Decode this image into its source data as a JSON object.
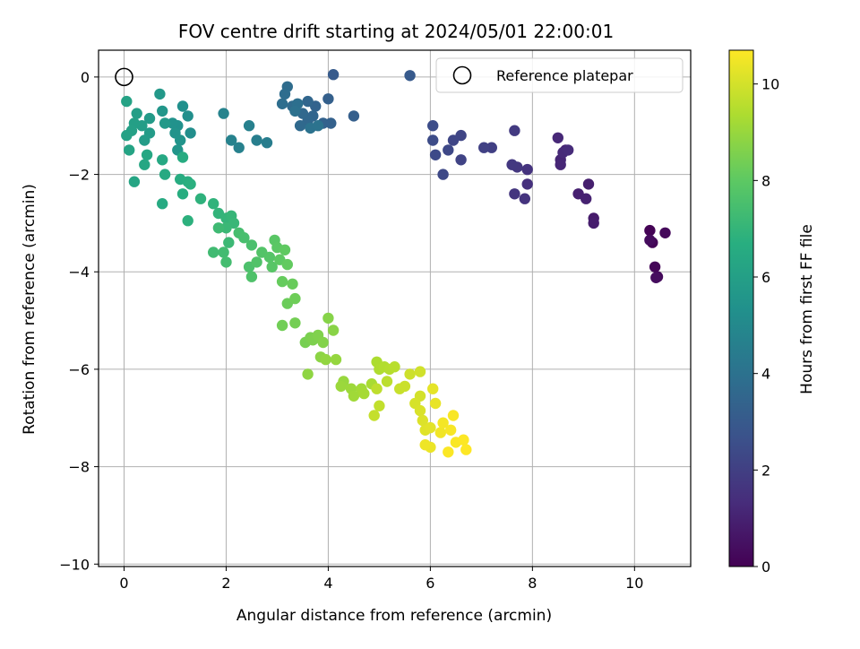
{
  "chart_data": {
    "type": "scatter",
    "title": "FOV centre drift starting at 2024/05/01 22:00:01",
    "xlabel": "Angular distance from reference (arcmin)",
    "ylabel": "Rotation from reference (arcmin)",
    "xlim": [
      -0.5,
      11.1
    ],
    "ylim": [
      -10.05,
      0.55
    ],
    "xticks": [
      0,
      2,
      4,
      6,
      8,
      10
    ],
    "yticks": [
      0,
      -2,
      -4,
      -6,
      -8,
      -10
    ],
    "xtick_labels": [
      "0",
      "2",
      "4",
      "6",
      "8",
      "10"
    ],
    "ytick_labels": [
      "0",
      "−2",
      "−4",
      "−6",
      "−8",
      "−10"
    ],
    "grid": true,
    "legend": {
      "placement": "top-right",
      "entries": [
        "Reference platepar"
      ]
    },
    "colormap": "viridis",
    "colorbar": {
      "label": "Hours from first FF file",
      "range": [
        0,
        10.7
      ],
      "ticks": [
        0,
        2,
        4,
        6,
        8,
        10
      ],
      "tick_labels": [
        "0",
        "2",
        "4",
        "6",
        "8",
        "10"
      ]
    },
    "reference_point": {
      "x": 0,
      "y": 0
    },
    "points": [
      [
        10.3,
        -3.15,
        0.05
      ],
      [
        10.35,
        -3.4,
        0.1
      ],
      [
        10.4,
        -3.9,
        0.15
      ],
      [
        10.45,
        -4.1,
        0.2
      ],
      [
        10.6,
        -3.2,
        0.25
      ],
      [
        10.3,
        -3.35,
        0.3
      ],
      [
        10.42,
        -4.12,
        0.35
      ],
      [
        9.2,
        -2.9,
        0.8
      ],
      [
        9.2,
        -3.0,
        0.85
      ],
      [
        9.1,
        -2.2,
        0.9
      ],
      [
        8.9,
        -2.4,
        0.95
      ],
      [
        9.05,
        -2.5,
        1.0
      ],
      [
        8.65,
        -1.5,
        1.05
      ],
      [
        8.55,
        -1.7,
        1.1
      ],
      [
        8.55,
        -1.8,
        1.15
      ],
      [
        8.5,
        -1.25,
        1.2
      ],
      [
        8.6,
        -1.55,
        1.25
      ],
      [
        8.7,
        -1.5,
        1.3
      ],
      [
        7.9,
        -2.2,
        1.5
      ],
      [
        7.9,
        -1.9,
        1.55
      ],
      [
        7.85,
        -2.5,
        1.6
      ],
      [
        7.65,
        -2.4,
        1.65
      ],
      [
        7.7,
        -1.85,
        1.7
      ],
      [
        7.6,
        -1.8,
        1.75
      ],
      [
        7.65,
        -1.1,
        1.8
      ],
      [
        7.2,
        -1.45,
        2.0
      ],
      [
        7.05,
        -1.45,
        2.05
      ],
      [
        6.6,
        -1.7,
        2.15
      ],
      [
        6.6,
        -1.2,
        2.2
      ],
      [
        6.45,
        -1.3,
        2.25
      ],
      [
        6.35,
        -1.5,
        2.3
      ],
      [
        6.25,
        -2.0,
        2.35
      ],
      [
        6.1,
        -1.6,
        2.4
      ],
      [
        6.05,
        -1.3,
        2.45
      ],
      [
        6.05,
        -1.0,
        2.5
      ],
      [
        5.6,
        0.03,
        3.0
      ],
      [
        4.1,
        0.05,
        3.05
      ],
      [
        4.5,
        -0.8,
        3.2
      ],
      [
        4.0,
        -0.45,
        3.25
      ],
      [
        4.05,
        -0.95,
        3.3
      ],
      [
        3.9,
        -0.95,
        3.35
      ],
      [
        3.75,
        -0.6,
        3.4
      ],
      [
        3.7,
        -0.8,
        3.45
      ],
      [
        3.6,
        -0.5,
        3.5
      ],
      [
        3.6,
        -0.9,
        3.55
      ],
      [
        3.5,
        -0.75,
        3.6
      ],
      [
        3.45,
        -1.0,
        3.65
      ],
      [
        3.3,
        -0.6,
        3.7
      ],
      [
        3.2,
        -0.2,
        3.75
      ],
      [
        3.15,
        -0.35,
        3.8
      ],
      [
        3.1,
        -0.55,
        3.85
      ],
      [
        3.4,
        -0.55,
        3.9
      ],
      [
        3.35,
        -0.7,
        3.95
      ],
      [
        3.65,
        -1.05,
        4.0
      ],
      [
        3.8,
        -1.0,
        4.05
      ],
      [
        2.8,
        -1.35,
        4.5
      ],
      [
        2.6,
        -1.3,
        4.55
      ],
      [
        2.45,
        -1.0,
        4.6
      ],
      [
        2.25,
        -1.45,
        4.65
      ],
      [
        2.1,
        -1.3,
        4.7
      ],
      [
        1.95,
        -0.75,
        4.75
      ],
      [
        1.3,
        -1.15,
        5.2
      ],
      [
        1.25,
        -0.8,
        5.25
      ],
      [
        1.15,
        -0.6,
        5.3
      ],
      [
        1.05,
        -1.0,
        5.35
      ],
      [
        0.95,
        -0.95,
        5.4
      ],
      [
        1.0,
        -1.15,
        5.45
      ],
      [
        1.1,
        -1.3,
        5.5
      ],
      [
        1.05,
        -1.5,
        5.55
      ],
      [
        0.75,
        -0.7,
        5.6
      ],
      [
        0.7,
        -0.35,
        5.65
      ],
      [
        0.8,
        -0.95,
        5.7
      ],
      [
        0.5,
        -0.85,
        5.75
      ],
      [
        0.5,
        -1.15,
        5.8
      ],
      [
        0.4,
        -1.3,
        5.85
      ],
      [
        0.35,
        -1.0,
        5.9
      ],
      [
        0.25,
        -0.75,
        5.95
      ],
      [
        0.2,
        -0.95,
        6.0
      ],
      [
        0.15,
        -1.1,
        6.05
      ],
      [
        0.05,
        -1.2,
        6.1
      ],
      [
        0.05,
        -0.5,
        6.15
      ],
      [
        0.1,
        -1.5,
        6.2
      ],
      [
        0.2,
        -2.15,
        6.25
      ],
      [
        0.4,
        -1.8,
        6.3
      ],
      [
        0.45,
        -1.6,
        6.35
      ],
      [
        0.75,
        -1.7,
        6.4
      ],
      [
        0.8,
        -2.0,
        6.45
      ],
      [
        0.75,
        -2.6,
        6.5
      ],
      [
        1.15,
        -1.65,
        6.55
      ],
      [
        1.1,
        -2.1,
        6.6
      ],
      [
        1.15,
        -2.4,
        6.65
      ],
      [
        1.25,
        -2.15,
        6.7
      ],
      [
        1.3,
        -2.2,
        6.75
      ],
      [
        1.25,
        -2.95,
        6.8
      ],
      [
        1.5,
        -2.5,
        6.85
      ],
      [
        1.75,
        -2.6,
        6.9
      ],
      [
        1.85,
        -2.8,
        6.95
      ],
      [
        2.0,
        -2.9,
        7.0
      ],
      [
        2.1,
        -2.85,
        7.05
      ],
      [
        2.15,
        -3.0,
        7.1
      ],
      [
        2.0,
        -3.1,
        7.15
      ],
      [
        2.05,
        -3.4,
        7.2
      ],
      [
        1.85,
        -3.1,
        7.25
      ],
      [
        1.75,
        -3.6,
        7.3
      ],
      [
        1.95,
        -3.6,
        7.35
      ],
      [
        2.0,
        -3.8,
        7.4
      ],
      [
        2.25,
        -3.2,
        7.45
      ],
      [
        2.35,
        -3.3,
        7.5
      ],
      [
        2.5,
        -3.45,
        7.55
      ],
      [
        2.45,
        -3.9,
        7.6
      ],
      [
        2.5,
        -4.1,
        7.65
      ],
      [
        2.6,
        -3.8,
        7.7
      ],
      [
        2.7,
        -3.6,
        7.75
      ],
      [
        2.85,
        -3.7,
        7.8
      ],
      [
        2.9,
        -3.9,
        7.85
      ],
      [
        2.95,
        -3.35,
        7.9
      ],
      [
        3.0,
        -3.5,
        7.95
      ],
      [
        3.05,
        -3.75,
        8.0
      ],
      [
        3.15,
        -3.55,
        8.05
      ],
      [
        3.2,
        -3.85,
        8.1
      ],
      [
        3.1,
        -4.2,
        8.15
      ],
      [
        3.3,
        -4.25,
        8.2
      ],
      [
        3.2,
        -4.65,
        8.25
      ],
      [
        3.35,
        -4.55,
        8.3
      ],
      [
        3.1,
        -5.1,
        8.35
      ],
      [
        3.35,
        -5.05,
        8.4
      ],
      [
        3.55,
        -5.45,
        8.45
      ],
      [
        3.65,
        -5.35,
        8.5
      ],
      [
        3.7,
        -5.4,
        8.55
      ],
      [
        3.8,
        -5.3,
        8.6
      ],
      [
        3.9,
        -5.45,
        8.65
      ],
      [
        4.0,
        -4.95,
        8.7
      ],
      [
        4.1,
        -5.2,
        8.75
      ],
      [
        3.85,
        -5.75,
        8.8
      ],
      [
        3.6,
        -6.1,
        8.85
      ],
      [
        3.95,
        -5.8,
        8.9
      ],
      [
        4.15,
        -5.8,
        8.95
      ],
      [
        4.3,
        -6.25,
        9.0
      ],
      [
        4.25,
        -6.35,
        9.05
      ],
      [
        4.45,
        -6.4,
        9.1
      ],
      [
        4.5,
        -6.55,
        9.15
      ],
      [
        4.65,
        -6.4,
        9.2
      ],
      [
        4.7,
        -6.5,
        9.25
      ],
      [
        4.85,
        -6.3,
        9.3
      ],
      [
        4.95,
        -5.85,
        9.35
      ],
      [
        5.0,
        -6.0,
        9.4
      ],
      [
        5.1,
        -5.95,
        9.45
      ],
      [
        5.2,
        -6.0,
        9.5
      ],
      [
        5.3,
        -5.95,
        9.55
      ],
      [
        5.15,
        -6.25,
        9.6
      ],
      [
        4.95,
        -6.4,
        9.65
      ],
      [
        5.0,
        -6.75,
        9.7
      ],
      [
        4.9,
        -6.95,
        9.75
      ],
      [
        5.4,
        -6.4,
        9.8
      ],
      [
        5.5,
        -6.35,
        9.85
      ],
      [
        5.6,
        -6.1,
        9.9
      ],
      [
        5.8,
        -6.05,
        9.95
      ],
      [
        5.8,
        -6.55,
        10.0
      ],
      [
        5.7,
        -6.7,
        10.05
      ],
      [
        5.8,
        -6.85,
        10.1
      ],
      [
        5.85,
        -7.05,
        10.15
      ],
      [
        5.9,
        -7.25,
        10.2
      ],
      [
        6.0,
        -7.2,
        10.25
      ],
      [
        6.05,
        -6.4,
        10.3
      ],
      [
        6.1,
        -6.7,
        10.35
      ],
      [
        6.0,
        -7.6,
        10.4
      ],
      [
        5.9,
        -7.55,
        10.45
      ],
      [
        6.2,
        -7.3,
        10.5
      ],
      [
        6.25,
        -7.1,
        10.55
      ],
      [
        6.4,
        -7.25,
        10.6
      ],
      [
        6.45,
        -6.95,
        10.62
      ],
      [
        6.5,
        -7.5,
        10.64
      ],
      [
        6.35,
        -7.7,
        10.66
      ],
      [
        6.65,
        -7.45,
        10.68
      ],
      [
        6.7,
        -7.65,
        10.7
      ]
    ]
  }
}
